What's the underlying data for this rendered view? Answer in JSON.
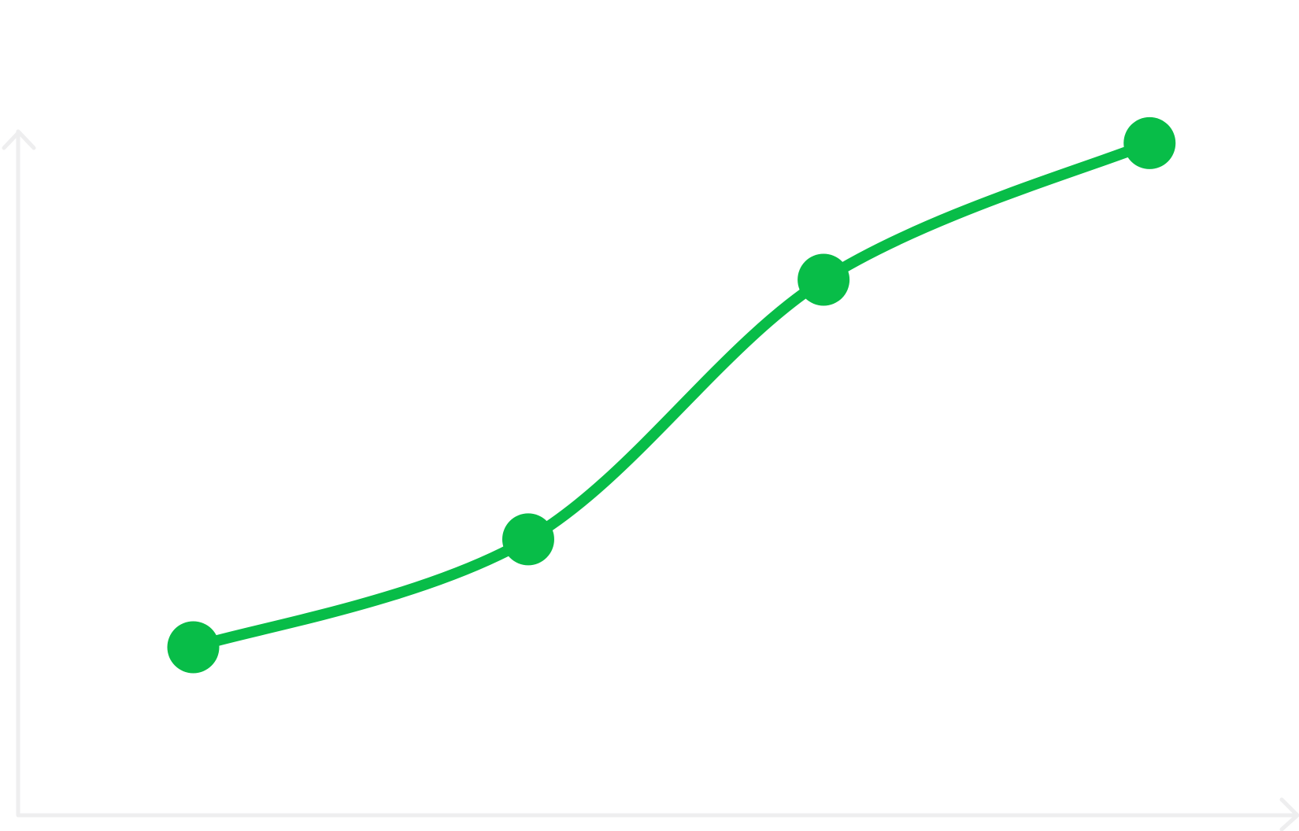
{
  "chart_data": {
    "type": "line",
    "x": [
      13.7,
      39.9,
      63.0,
      88.5
    ],
    "values": [
      24.6,
      40.4,
      78.4,
      98.4
    ],
    "color": "#08bd48",
    "xlim": [
      0,
      100
    ],
    "ylim": [
      0,
      100
    ]
  }
}
